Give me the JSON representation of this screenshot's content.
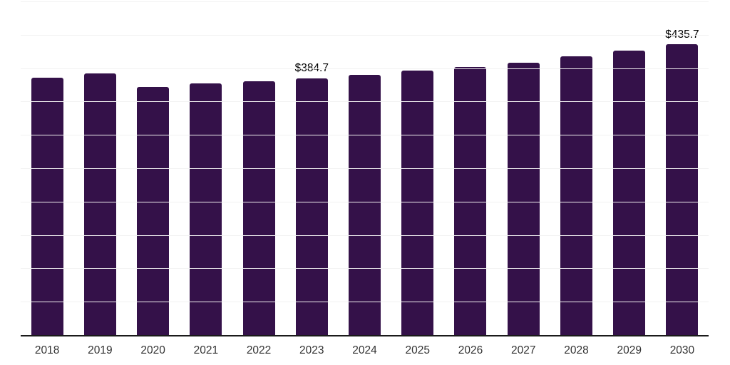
{
  "chart_data": {
    "type": "bar",
    "title": "",
    "xlabel": "",
    "ylabel": "",
    "categories": [
      "2018",
      "2019",
      "2020",
      "2021",
      "2022",
      "2023",
      "2024",
      "2025",
      "2026",
      "2027",
      "2028",
      "2029",
      "2030"
    ],
    "values": [
      386.1,
      392.4,
      371.9,
      377.2,
      380.1,
      384.7,
      390.0,
      396.0,
      401.4,
      408.4,
      417.3,
      426.2,
      435.7
    ],
    "data_labels": [
      "",
      "",
      "",
      "",
      "",
      "$384.7",
      "",
      "",
      "",
      "",
      "",
      "",
      "$435.7"
    ],
    "ylim": [
      0,
      500
    ],
    "grid_step": 50,
    "grid": "horizontal",
    "legend_position": "none",
    "colors": {
      "bar": "#341149",
      "gridline": "#f2f2f2",
      "axis_line": "#1a1a1a",
      "data_label": "#000000",
      "tick_label": "#333333",
      "background": "#ffffff"
    }
  }
}
